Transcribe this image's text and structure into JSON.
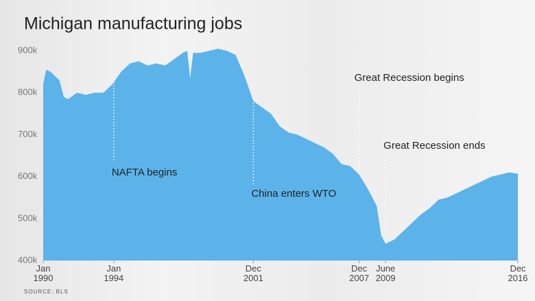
{
  "chart_data": {
    "type": "area",
    "title": "Michigan manufacturing jobs",
    "source": "SOURCE: BLS",
    "color": "#5cb3ea",
    "x": [
      "1990-01",
      "1990-03",
      "1990-06",
      "1990-12",
      "1991-03",
      "1991-06",
      "1991-12",
      "1992-06",
      "1992-12",
      "1993-06",
      "1993-12",
      "1994-06",
      "1994-12",
      "1995-06",
      "1995-12",
      "1996-06",
      "1996-12",
      "1997-06",
      "1997-12",
      "1998-03",
      "1998-05",
      "1998-07",
      "1998-12",
      "1999-06",
      "1999-12",
      "2000-06",
      "2000-12",
      "2001-06",
      "2001-12",
      "2002-06",
      "2002-12",
      "2003-06",
      "2003-12",
      "2004-06",
      "2004-12",
      "2005-06",
      "2005-12",
      "2006-06",
      "2006-12",
      "2007-06",
      "2007-12",
      "2008-06",
      "2008-12",
      "2009-03",
      "2009-06",
      "2009-12",
      "2010-06",
      "2010-12",
      "2011-06",
      "2011-12",
      "2012-06",
      "2012-12",
      "2013-06",
      "2013-12",
      "2014-06",
      "2014-12",
      "2015-06",
      "2015-12",
      "2016-06",
      "2016-12"
    ],
    "values": [
      820000,
      855000,
      850000,
      830000,
      790000,
      785000,
      800000,
      795000,
      800000,
      800000,
      820000,
      850000,
      870000,
      875000,
      865000,
      870000,
      865000,
      880000,
      895000,
      900000,
      835000,
      895000,
      895000,
      900000,
      905000,
      900000,
      890000,
      840000,
      780000,
      765000,
      750000,
      720000,
      705000,
      700000,
      690000,
      680000,
      670000,
      655000,
      630000,
      625000,
      605000,
      570000,
      530000,
      460000,
      440000,
      450000,
      470000,
      490000,
      510000,
      525000,
      545000,
      550000,
      560000,
      570000,
      580000,
      590000,
      600000,
      605000,
      610000,
      607000
    ],
    "xlim": [
      "1990-01",
      "2016-12"
    ],
    "xticks": [
      {
        "value": "1990-01",
        "label": "Jan 1990"
      },
      {
        "value": "1994-01",
        "label": "Jan 1994"
      },
      {
        "value": "2001-12",
        "label": "Dec 2001"
      },
      {
        "value": "2007-12",
        "label": "Dec 2007"
      },
      {
        "value": "2009-06",
        "label": "June 2009"
      },
      {
        "value": "2016-12",
        "label": "Dec 2016"
      }
    ],
    "ylim": [
      400000,
      910000
    ],
    "yticks": [
      {
        "value": 400000,
        "label": "400k"
      },
      {
        "value": 500000,
        "label": "500k"
      },
      {
        "value": 600000,
        "label": "600k"
      },
      {
        "value": 700000,
        "label": "700k"
      },
      {
        "value": 800000,
        "label": "800k"
      },
      {
        "value": 900000,
        "label": "900k"
      }
    ],
    "annotations": [
      {
        "text": "NAFTA begins",
        "x": "1994-01"
      },
      {
        "text": "China enters WTO",
        "x": "2001-12"
      },
      {
        "text": "Great Recession begins",
        "x": "2007-12"
      },
      {
        "text": "Great Recession ends",
        "x": "2009-06"
      }
    ]
  }
}
